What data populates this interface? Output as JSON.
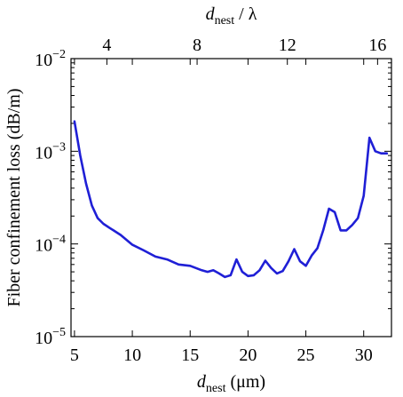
{
  "chart_data": {
    "type": "line",
    "xlabel": {
      "main": "d",
      "sub": "nest",
      "rest": " (μm)"
    },
    "ylabel": "Fiber confinement loss (dB/m)",
    "top_xlabel": {
      "main": "d",
      "sub": "nest",
      "rest": " / λ"
    },
    "xlim": [
      4.7,
      32.4
    ],
    "ylim": [
      1e-05,
      0.01
    ],
    "y_scale": "log",
    "x_ticks": [
      5,
      10,
      15,
      20,
      25,
      30
    ],
    "x_tick_labels": [
      "5",
      "10",
      "15",
      "20",
      "25",
      "30"
    ],
    "top_ticks": [
      {
        "value": 4,
        "position": 7.8
      },
      {
        "value": 8,
        "position": 15.6
      },
      {
        "value": 12,
        "position": 23.4
      },
      {
        "value": 16,
        "position": 31.2
      }
    ],
    "top_tick_labels": [
      "4",
      "8",
      "12",
      "16"
    ],
    "y_ticks": [
      1e-05,
      0.0001,
      0.001,
      0.01
    ],
    "y_tick_labels": [
      {
        "base": "10",
        "exp": "−5"
      },
      {
        "base": "10",
        "exp": "−4"
      },
      {
        "base": "10",
        "exp": "−3"
      },
      {
        "base": "10",
        "exp": "−2"
      }
    ],
    "grid": false,
    "color": "#1f1fd6",
    "series": [
      {
        "x": [
          5.0,
          5.5,
          6.0,
          6.5,
          7.0,
          7.5,
          8.0,
          9.0,
          10.0,
          11.0,
          12.0,
          13.0,
          14.0,
          15.0,
          16.0,
          16.5,
          17.0,
          17.5,
          18.0,
          18.5,
          19.0,
          19.5,
          20.0,
          20.5,
          21.0,
          21.5,
          22.0,
          22.5,
          23.0,
          23.5,
          24.0,
          24.5,
          25.0,
          25.5,
          26.0,
          26.5,
          27.0,
          27.5,
          28.0,
          28.5,
          29.0,
          29.5,
          30.0,
          30.5,
          31.0,
          31.5,
          32.0
        ],
        "y": [
          0.0021,
          0.0009,
          0.00045,
          0.00026,
          0.00019,
          0.000165,
          0.00015,
          0.000125,
          9.8e-05,
          8.5e-05,
          7.3e-05,
          6.8e-05,
          6e-05,
          5.8e-05,
          5.2e-05,
          5e-05,
          5.2e-05,
          4.8e-05,
          4.4e-05,
          4.6e-05,
          6.8e-05,
          5e-05,
          4.5e-05,
          4.6e-05,
          5.2e-05,
          6.6e-05,
          5.5e-05,
          4.8e-05,
          5.1e-05,
          6.5e-05,
          8.8e-05,
          6.5e-05,
          5.8e-05,
          7.5e-05,
          9e-05,
          0.00014,
          0.00024,
          0.00022,
          0.00014,
          0.00014,
          0.00016,
          0.00019,
          0.00033,
          0.0014,
          0.001,
          0.00095,
          0.00095
        ]
      }
    ]
  }
}
